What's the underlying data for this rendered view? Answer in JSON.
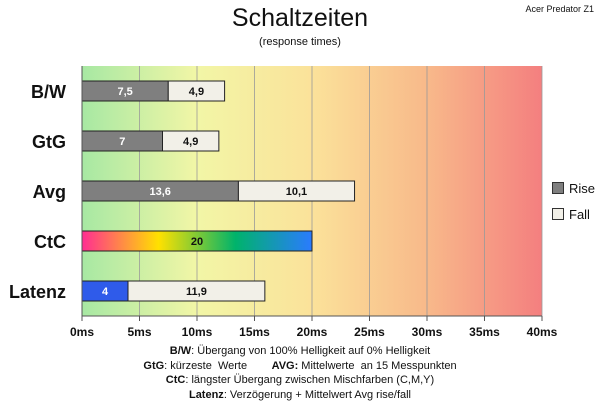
{
  "header": {
    "title": "Schaltzeiten",
    "subtitle": "(response times)",
    "corner_label": "Acer Predator Z1"
  },
  "chart_data": {
    "type": "bar",
    "orientation": "horizontal",
    "stacked": true,
    "title": "Schaltzeiten",
    "subtitle": "(response times)",
    "categories": [
      "B/W",
      "GtG",
      "Avg",
      "CtC",
      "Latenz"
    ],
    "series": [
      {
        "name": "Rise",
        "values": [
          7.5,
          7,
          13.6,
          20,
          4
        ]
      },
      {
        "name": "Fall",
        "values": [
          4.9,
          4.9,
          10.1,
          null,
          11.9
        ]
      }
    ],
    "value_labels": {
      "Rise": [
        "7,5",
        "7",
        "13,6",
        "20",
        "4"
      ],
      "Fall": [
        "4,9",
        "4,9",
        "10,1",
        "",
        "11,9"
      ]
    },
    "xlim": [
      0,
      40
    ],
    "xticks": [
      0,
      5,
      10,
      15,
      20,
      25,
      30,
      35,
      40
    ],
    "xtick_labels": [
      "0ms",
      "5ms",
      "10ms",
      "15ms",
      "20ms",
      "25ms",
      "30ms",
      "35ms",
      "40ms"
    ],
    "xlabel": "",
    "ylabel": "",
    "grid": "vertical",
    "legend": "right",
    "background_gradient": [
      "#a7e8a3",
      "#f2f6a6",
      "#fbe29a",
      "#f8b98a",
      "#f47f7f"
    ],
    "colors": {
      "Rise": "#7f7f7f",
      "Fall": "#f2f0e8",
      "Latenz_rise": "#2f5bea",
      "CtC_gradient": [
        "#ff2d92",
        "#ffe100",
        "#00b36b",
        "#2a7bff"
      ]
    }
  },
  "notes": [
    {
      "key": "B/W",
      "text": ":  Übergang von 100% Helligkeit auf 0% Helligkeit"
    },
    {
      "key": "GtG",
      "text": ": kürzeste  Werte        ",
      "key2": "AVG:",
      "text2": " Mittelwerte  an 15 Messpunkten"
    },
    {
      "key": "CtC",
      "text": ": längster Übergang  zwischen Mischfarben (C,M,Y)"
    },
    {
      "key": "Latenz",
      "text": ": Verzögerung  + Mittelwert Avg rise/fall"
    }
  ]
}
